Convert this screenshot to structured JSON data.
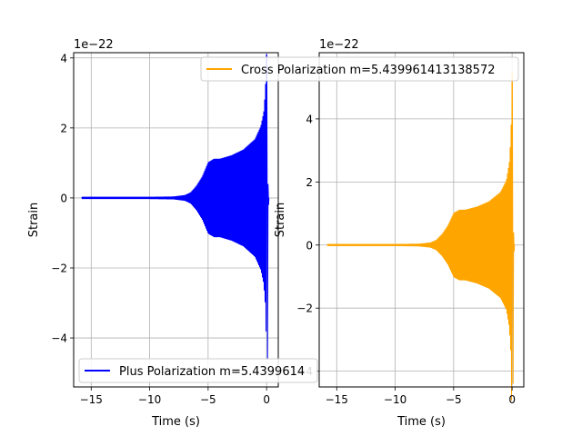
{
  "chart_data": [
    {
      "type": "line",
      "panel": "left",
      "xlabel": "Time (s)",
      "ylabel": "Strain",
      "offset_text": "1e−22",
      "scale": 1e-22,
      "xlim": [
        -16.5,
        1.0
      ],
      "ylim": [
        -5.4,
        4.15
      ],
      "xticks": [
        -15,
        -10,
        -5,
        0
      ],
      "xtick_labels": [
        "−15",
        "−10",
        "−5",
        "0"
      ],
      "yticks": [
        -4,
        -2,
        0,
        2,
        4
      ],
      "ytick_labels": [
        "−4",
        "−2",
        "0",
        "2",
        "4"
      ],
      "grid": true,
      "legend_position": "lower-left",
      "series": [
        {
          "name": "Plus Polarization m=5.439961413138572",
          "legend_visible_text": "Plus Polarization m=5.4399614",
          "color": "#0000ff",
          "t_start": -15.8,
          "t_end": 0.2,
          "envelope": [
            [
              -15.8,
              0.03
            ],
            [
              -10,
              0.03
            ],
            [
              -8,
              0.04
            ],
            [
              -7,
              0.08
            ],
            [
              -6.5,
              0.16
            ],
            [
              -6,
              0.35
            ],
            [
              -5.5,
              0.62
            ],
            [
              -5.0,
              1.02
            ],
            [
              -4.5,
              1.12
            ],
            [
              -4.0,
              1.12
            ],
            [
              -3.0,
              1.22
            ],
            [
              -2.0,
              1.38
            ],
            [
              -1.0,
              1.68
            ],
            [
              -0.5,
              2.05
            ],
            [
              -0.25,
              2.45
            ],
            [
              -0.1,
              3.1
            ],
            [
              -0.03,
              4.1
            ]
          ],
          "merger_min": -4.6,
          "ringdown_end": 0.1
        }
      ]
    },
    {
      "type": "line",
      "panel": "right",
      "xlabel": "Time (s)",
      "ylabel": "Strain",
      "offset_text": "1e−22",
      "scale": 1e-22,
      "xlim": [
        -16.5,
        1.0
      ],
      "ylim": [
        -4.5,
        6.1
      ],
      "xticks": [
        -15,
        -10,
        -5,
        0
      ],
      "xtick_labels": [
        "−15",
        "−10",
        "−5",
        "0"
      ],
      "yticks": [
        -4,
        -2,
        0,
        2,
        4
      ],
      "ytick_labels": [
        "−4",
        "−2",
        "0",
        "2",
        "4"
      ],
      "grid": true,
      "legend_position": "upper-right",
      "series": [
        {
          "name": "Cross Polarization m=5.439961413138572",
          "legend_visible_text": "Cross Polarization m=5.439961413138572",
          "color": "#ffa500",
          "t_start": -15.8,
          "t_end": 0.2,
          "envelope": [
            [
              -15.8,
              0.03
            ],
            [
              -10,
              0.03
            ],
            [
              -8,
              0.04
            ],
            [
              -7,
              0.08
            ],
            [
              -6.5,
              0.16
            ],
            [
              -6,
              0.35
            ],
            [
              -5.5,
              0.62
            ],
            [
              -5.0,
              1.02
            ],
            [
              -4.5,
              1.12
            ],
            [
              -4.0,
              1.12
            ],
            [
              -3.0,
              1.22
            ],
            [
              -2.0,
              1.38
            ],
            [
              -1.0,
              1.68
            ],
            [
              -0.5,
              2.05
            ],
            [
              -0.25,
              2.6
            ],
            [
              -0.1,
              3.5
            ],
            [
              -0.03,
              5.5
            ]
          ],
          "merger_min": -4.4,
          "ringdown_end": 0.1
        }
      ]
    }
  ]
}
